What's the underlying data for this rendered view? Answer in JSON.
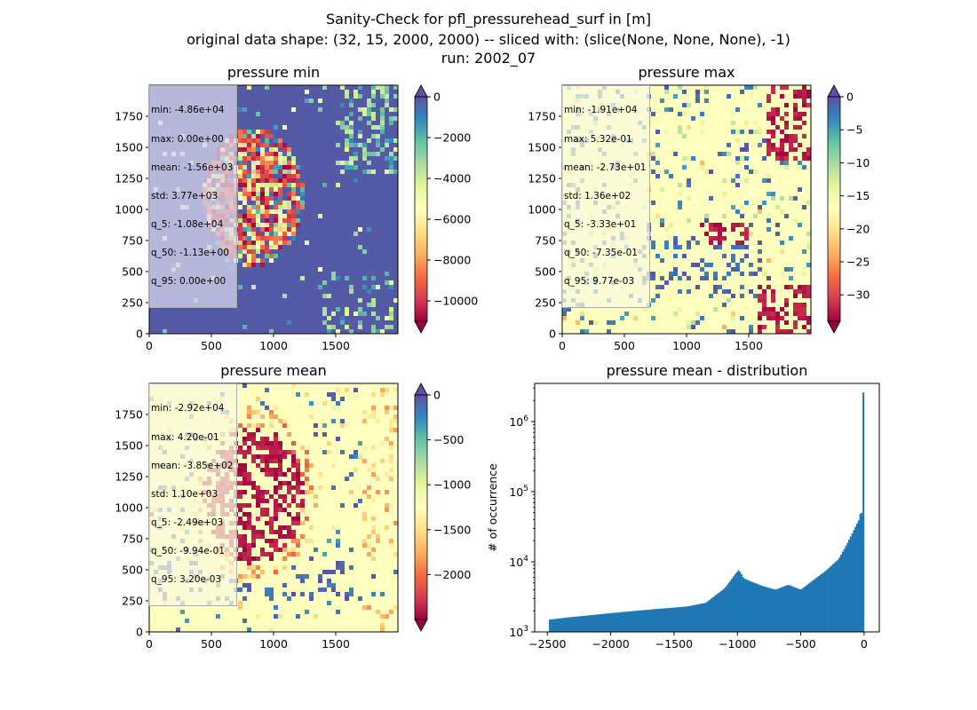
{
  "title_lines": [
    "Sanity-Check for pfl_pressurehead_surf in [m]",
    "original data shape: (32, 15, 2000, 2000) -- sliced with: (slice(None, None, None), -1)",
    "run: 2002_07"
  ],
  "chart_data": [
    {
      "type": "heatmap",
      "title": "pressure min",
      "xlim": [
        0,
        2000
      ],
      "ylim": [
        0,
        2000
      ],
      "xticks": [
        "0",
        "500",
        "1000",
        "1500"
      ],
      "yticks": [
        "0",
        "250",
        "500",
        "750",
        "1000",
        "1250",
        "1500",
        "1750"
      ],
      "colormap": "Spectral",
      "colorbar": {
        "range": [
          -11000,
          0
        ],
        "ticks": [
          "0",
          "−2000",
          "−4000",
          "−6000",
          "−8000",
          "−10000"
        ],
        "extend": "both"
      },
      "stats": [
        "min: -4.86e+04",
        "max: 0.00e+00",
        "mean: -1.56e+03",
        "std: 3.77e+03",
        "q_5: -1.08e+04",
        "q_50: -1.13e+00",
        "q_95: 0.00e+00"
      ]
    },
    {
      "type": "heatmap",
      "title": "pressure max",
      "xlim": [
        0,
        2000
      ],
      "ylim": [
        0,
        2000
      ],
      "xticks": [
        "0",
        "500",
        "1000",
        "1500"
      ],
      "yticks": [
        "0",
        "250",
        "500",
        "750",
        "1000",
        "1250",
        "1500",
        "1750"
      ],
      "colormap": "Spectral",
      "colorbar": {
        "range": [
          -34,
          0
        ],
        "ticks": [
          "0",
          "−5",
          "−10",
          "−15",
          "−20",
          "−25",
          "−30"
        ],
        "extend": "both"
      },
      "stats": [
        "min: -1.91e+04",
        "max: 5.32e-01",
        "mean: -2.73e+01",
        "std: 1.36e+02",
        "q_5: -3.33e+01",
        "q_50: -7.35e-01",
        "q_95: 9.77e-03"
      ]
    },
    {
      "type": "heatmap",
      "title": "pressure mean",
      "xlim": [
        0,
        2000
      ],
      "ylim": [
        0,
        2000
      ],
      "xticks": [
        "0",
        "500",
        "1000",
        "1500"
      ],
      "yticks": [
        "0",
        "250",
        "500",
        "750",
        "1000",
        "1250",
        "1500",
        "1750"
      ],
      "colormap": "Spectral",
      "colorbar": {
        "range": [
          -2500,
          0
        ],
        "ticks": [
          "0",
          "−500",
          "−1000",
          "−1500",
          "−2000"
        ],
        "extend": "both"
      },
      "stats": [
        "min: -2.92e+04",
        "max: 4.20e-01",
        "mean: -3.85e+02",
        "std: 1.10e+03",
        "q_5: -2.49e+03",
        "q_50: -9.94e-01",
        "q_95: 3.20e-03"
      ]
    },
    {
      "type": "bar",
      "title": "pressure mean - distribution",
      "ylabel": "# of occurrence",
      "xlabel": "",
      "xlim": [
        -2600,
        120
      ],
      "ylim": [
        1000,
        3500000
      ],
      "yscale": "log",
      "xticks": [
        -2500,
        -2000,
        -1500,
        -1000,
        -500,
        0
      ],
      "xtick_labels": [
        "−2500",
        "−2000",
        "−1500",
        "−1000",
        "−500",
        "0"
      ],
      "yticks": [
        1000,
        10000,
        100000,
        1000000
      ],
      "bin_width": 12.5,
      "x": [
        -2475,
        -2350,
        -2200,
        -2000,
        -1800,
        -1600,
        -1400,
        -1250,
        -1100,
        -1020,
        -990,
        -950,
        -900,
        -800,
        -700,
        -600,
        -500,
        -400,
        -300,
        -200,
        -150,
        -100,
        -60,
        -40,
        -25,
        -12,
        -6
      ],
      "values": [
        1500,
        1600,
        1700,
        1850,
        2000,
        2150,
        2300,
        2600,
        4200,
        6600,
        7700,
        5800,
        5300,
        4500,
        4000,
        4700,
        4000,
        5500,
        7500,
        11000,
        16000,
        24000,
        34000,
        40000,
        55000,
        45000,
        2600000
      ],
      "color": "#1f77b4"
    }
  ]
}
